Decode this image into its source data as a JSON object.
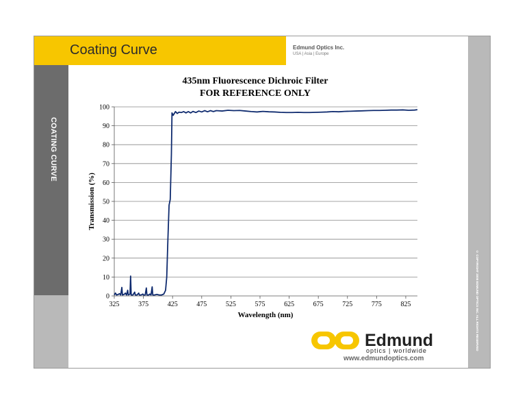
{
  "header": {
    "title": "Coating Curve",
    "company": "Edmund Optics Inc.",
    "regions": "USA | Asia | Europe"
  },
  "sidebar": {
    "label": "COATING CURVE"
  },
  "copyright": "© COPYRIGHT 2008 EDMUND OPTICS INC. ALL RIGHTS RESERVED",
  "logo": {
    "name": "Edmund",
    "tagline": "optics | worldwide",
    "website": "www.edmundoptics.com"
  },
  "colors": {
    "header_band": "#f7c600",
    "sidebar_dark": "#6c6c6c",
    "sidebar_light": "#b9b9b9",
    "curve": "#0e2a6e"
  },
  "chart_data": {
    "type": "line",
    "title": "435nm Fluorescence Dichroic Filter",
    "subtitle": "FOR REFERENCE ONLY",
    "xlabel": "Wavelength (nm)",
    "ylabel": "Transmission (%)",
    "xlim": [
      325,
      845
    ],
    "ylim": [
      0,
      100
    ],
    "xticks": [
      325,
      375,
      425,
      475,
      525,
      575,
      625,
      675,
      725,
      775,
      825
    ],
    "yticks": [
      0,
      10,
      20,
      30,
      40,
      50,
      60,
      70,
      80,
      90,
      100
    ],
    "grid": "horizontal",
    "series": [
      {
        "values": [
          [
            325,
            0.5
          ],
          [
            327,
            1.5
          ],
          [
            329,
            0.5
          ],
          [
            332,
            0.8
          ],
          [
            334,
            1.2
          ],
          [
            336,
            0.5
          ],
          [
            338,
            4.5
          ],
          [
            339,
            0.5
          ],
          [
            342,
            0.8
          ],
          [
            344,
            1.5
          ],
          [
            346,
            0.5
          ],
          [
            348,
            3.0
          ],
          [
            349,
            0.5
          ],
          [
            352,
            1.0
          ],
          [
            353,
            10.5
          ],
          [
            354,
            0.5
          ],
          [
            357,
            0.5
          ],
          [
            360,
            2.0
          ],
          [
            361,
            0.5
          ],
          [
            364,
            0.5
          ],
          [
            367,
            1.5
          ],
          [
            368,
            0.5
          ],
          [
            371,
            0.5
          ],
          [
            374,
            1.0
          ],
          [
            375,
            0.5
          ],
          [
            378,
            0.5
          ],
          [
            380,
            4.2
          ],
          [
            381,
            0.5
          ],
          [
            384,
            0.5
          ],
          [
            386,
            1.0
          ],
          [
            388,
            0.5
          ],
          [
            390,
            4.8
          ],
          [
            391,
            0.5
          ],
          [
            394,
            0.5
          ],
          [
            398,
            0.8
          ],
          [
            402,
            0.5
          ],
          [
            406,
            0.5
          ],
          [
            410,
            1.0
          ],
          [
            413,
            3.0
          ],
          [
            415,
            10.0
          ],
          [
            417,
            30.0
          ],
          [
            419,
            48.0
          ],
          [
            421,
            51.0
          ],
          [
            423,
            75.0
          ],
          [
            424,
            96.8
          ],
          [
            426,
            95.5
          ],
          [
            428,
            96.5
          ],
          [
            430,
            97.5
          ],
          [
            433,
            96.5
          ],
          [
            436,
            97.2
          ],
          [
            440,
            97.0
          ],
          [
            444,
            97.5
          ],
          [
            448,
            96.8
          ],
          [
            452,
            97.5
          ],
          [
            456,
            96.8
          ],
          [
            460,
            97.6
          ],
          [
            465,
            97.0
          ],
          [
            470,
            97.8
          ],
          [
            475,
            97.3
          ],
          [
            480,
            98.0
          ],
          [
            485,
            97.4
          ],
          [
            490,
            98.0
          ],
          [
            495,
            97.5
          ],
          [
            500,
            98.0
          ],
          [
            510,
            97.8
          ],
          [
            520,
            98.2
          ],
          [
            530,
            98.0
          ],
          [
            540,
            98.1
          ],
          [
            550,
            97.8
          ],
          [
            560,
            97.5
          ],
          [
            570,
            97.3
          ],
          [
            580,
            97.6
          ],
          [
            590,
            97.4
          ],
          [
            600,
            97.3
          ],
          [
            610,
            97.1
          ],
          [
            620,
            97.0
          ],
          [
            630,
            97.0
          ],
          [
            640,
            97.1
          ],
          [
            650,
            97.0
          ],
          [
            660,
            97.0
          ],
          [
            670,
            97.1
          ],
          [
            680,
            97.2
          ],
          [
            690,
            97.3
          ],
          [
            700,
            97.5
          ],
          [
            710,
            97.4
          ],
          [
            720,
            97.6
          ],
          [
            730,
            97.7
          ],
          [
            740,
            97.8
          ],
          [
            750,
            97.9
          ],
          [
            760,
            98.0
          ],
          [
            770,
            98.1
          ],
          [
            780,
            98.1
          ],
          [
            790,
            98.2
          ],
          [
            800,
            98.3
          ],
          [
            810,
            98.3
          ],
          [
            820,
            98.4
          ],
          [
            830,
            98.2
          ],
          [
            840,
            98.3
          ],
          [
            845,
            98.5
          ]
        ]
      }
    ]
  }
}
